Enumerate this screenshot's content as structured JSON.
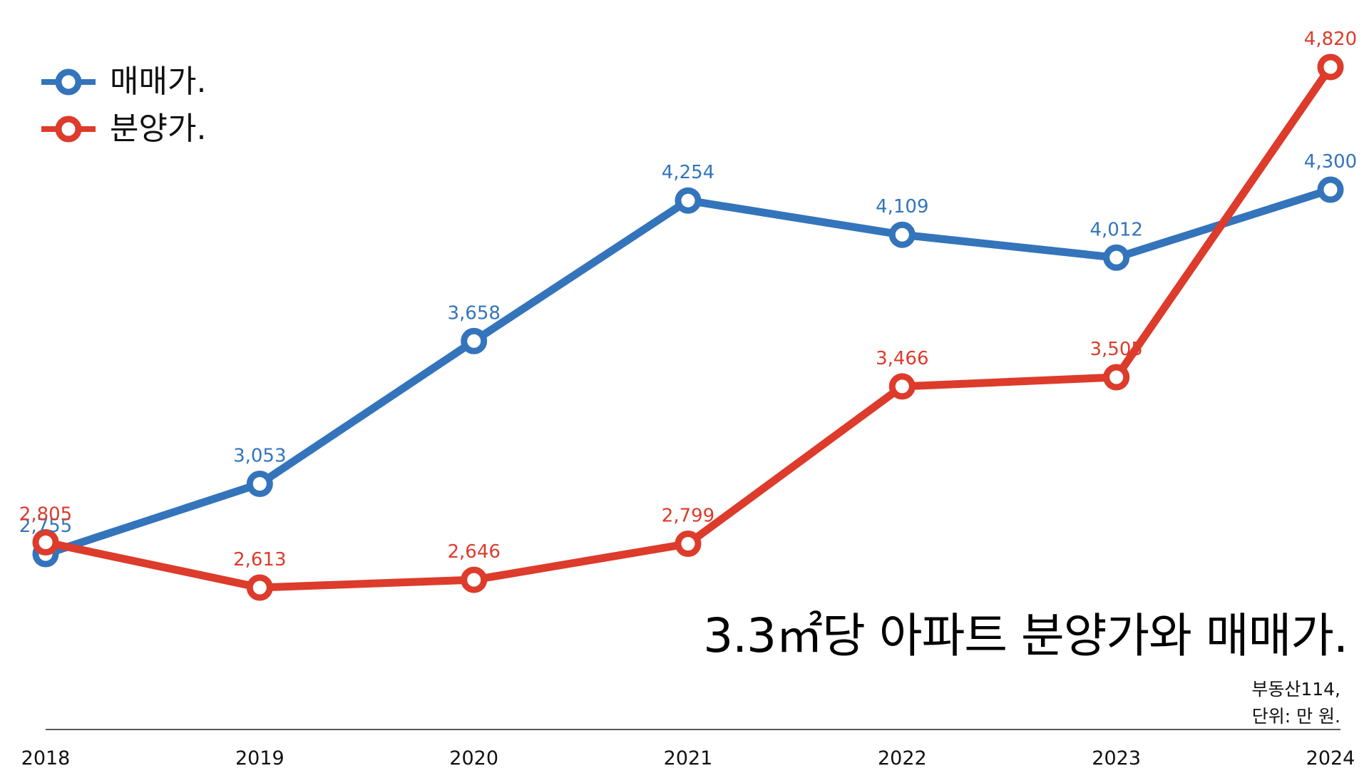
{
  "chart_data": {
    "type": "line",
    "title": "3.3㎡당 아파트 분양가와 매매가.",
    "source": "부동산114,",
    "unit_note": "단위: 만 원.",
    "xlabel": "",
    "ylabel": "",
    "x": [
      "2018",
      "2019",
      "2020",
      "2021",
      "2022",
      "2023",
      "2024"
    ],
    "ylim": [
      2400,
      5000
    ],
    "grid": false,
    "legend_position": "top-left",
    "series": [
      {
        "name": "매매가.",
        "color": "#3474bb",
        "values": [
          2755,
          3053,
          3658,
          4254,
          4109,
          4012,
          4300
        ],
        "labels": [
          "2,755",
          "3,053",
          "3,658",
          "4,254",
          "4,109",
          "4,012",
          "4,300"
        ]
      },
      {
        "name": "분양가.",
        "color": "#dd3b2b",
        "values": [
          2805,
          2613,
          2646,
          2799,
          3466,
          3505,
          4820
        ],
        "labels": [
          "2,805",
          "2,613",
          "2,646",
          "2,799",
          "3,466",
          "3,505",
          "4,820"
        ]
      }
    ]
  }
}
